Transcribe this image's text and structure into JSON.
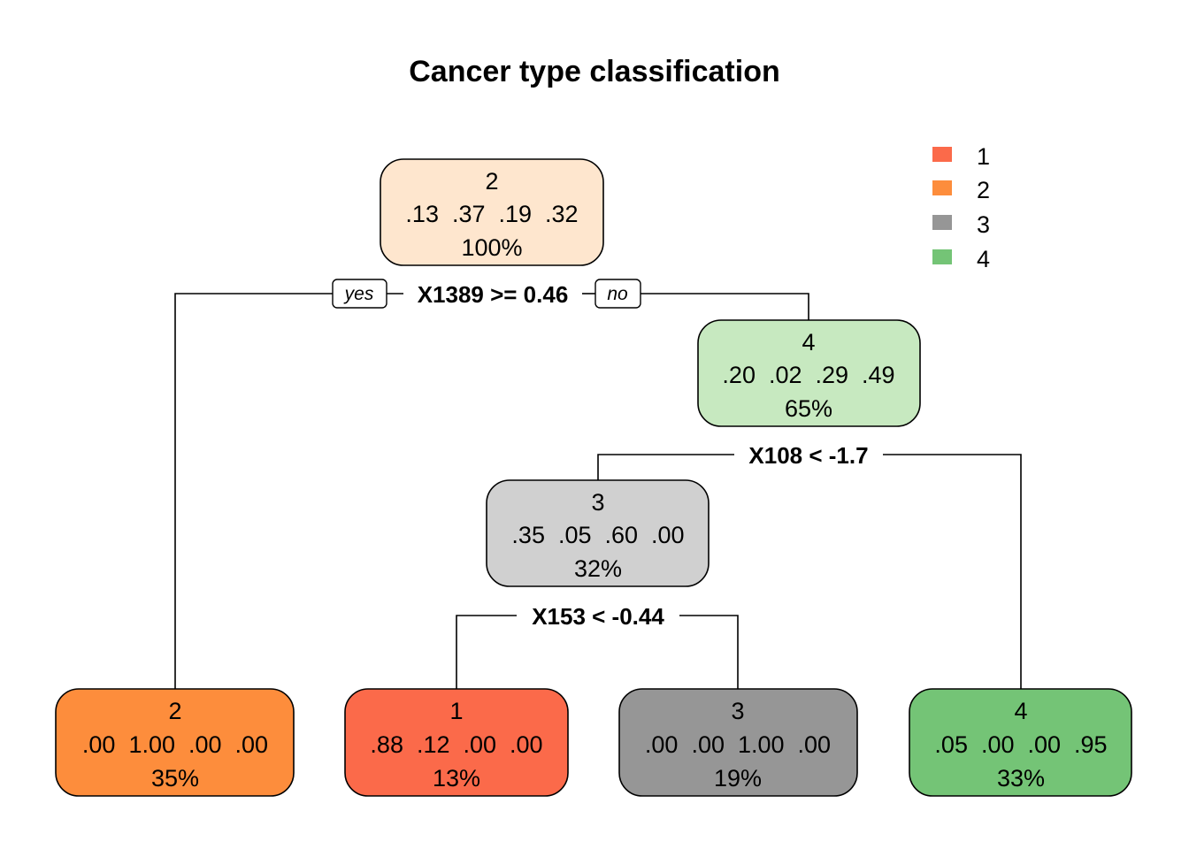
{
  "title": "Cancer type classification",
  "legend": [
    {
      "label": "1",
      "color": "#fb6a4a"
    },
    {
      "label": "2",
      "color": "#fd8d3c"
    },
    {
      "label": "3",
      "color": "#969696"
    },
    {
      "label": "4",
      "color": "#74c476"
    }
  ],
  "nodes": {
    "root": {
      "class": "2",
      "probs": ".13  .37  .19  .32",
      "pct": "100%",
      "color": "#fee6ce"
    },
    "right": {
      "class": "4",
      "probs": ".20  .02  .29  .49",
      "pct": "65%",
      "color": "#c7e9c0"
    },
    "mid": {
      "class": "3",
      "probs": ".35  .05  .60  .00",
      "pct": "32%",
      "color": "#d0d0d0"
    },
    "leaf_1": {
      "class": "2",
      "probs": ".00  1.00  .00  .00",
      "pct": "35%",
      "color": "#fd8d3c"
    },
    "leaf_2": {
      "class": "1",
      "probs": ".88  .12  .00  .00",
      "pct": "13%",
      "color": "#fb6a4a"
    },
    "leaf_3": {
      "class": "3",
      "probs": ".00  .00  1.00  .00",
      "pct": "19%",
      "color": "#969696"
    },
    "leaf_4": {
      "class": "4",
      "probs": ".05  .00  .00  .95",
      "pct": "33%",
      "color": "#74c476"
    }
  },
  "splits": {
    "root": "X1389 >= 0.46",
    "right": "X108 < -1.7",
    "mid": "X153 < -0.44"
  },
  "branch_labels": {
    "yes": "yes",
    "no": "no"
  }
}
